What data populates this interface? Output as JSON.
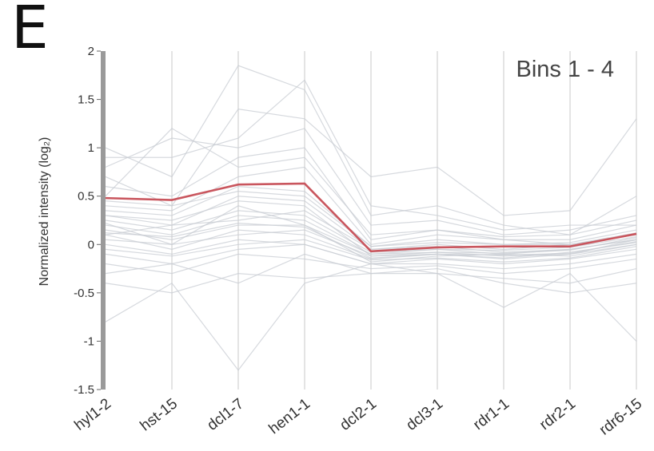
{
  "panel_label": "E",
  "chart_data": {
    "type": "line",
    "title": "",
    "annotation": "Bins 1 - 4",
    "ylabel": "Normalized intensity (log₂)",
    "xlabel": "",
    "categories": [
      "hyl1-2",
      "hst-15",
      "dcl1-7",
      "hen1-1",
      "dcl2-1",
      "dcl3-1",
      "rdr1-1",
      "rdr2-1",
      "rdr6-15"
    ],
    "yticks": [
      "2",
      "1.5",
      "1",
      "0.5",
      "0",
      "-0.5",
      "-1",
      "-1.5"
    ],
    "ylim": [
      -1.5,
      2
    ],
    "grid": "vertical",
    "highlight_color": "#c9565e",
    "background_color": "#c8ccd3",
    "series": [
      {
        "role": "average",
        "values": [
          0.48,
          0.46,
          0.62,
          0.63,
          -0.07,
          -0.03,
          -0.02,
          -0.02,
          0.11
        ]
      },
      {
        "role": "background",
        "values": [
          0.2,
          0.1,
          0.3,
          0.25,
          -0.1,
          -0.05,
          -0.1,
          -0.05,
          0.05
        ]
      },
      {
        "role": "background",
        "values": [
          0.1,
          -0.05,
          0.15,
          0.1,
          -0.15,
          -0.1,
          -0.15,
          -0.1,
          0.0
        ]
      },
      {
        "role": "background",
        "values": [
          0.3,
          0.2,
          0.5,
          0.45,
          -0.05,
          0.0,
          -0.05,
          0.0,
          0.1
        ]
      },
      {
        "role": "background",
        "values": [
          0.0,
          -0.1,
          0.05,
          0.0,
          -0.2,
          -0.15,
          -0.2,
          -0.15,
          -0.05
        ]
      },
      {
        "role": "background",
        "values": [
          0.15,
          0.05,
          0.2,
          0.2,
          -0.1,
          -0.08,
          -0.12,
          -0.1,
          0.05
        ]
      },
      {
        "role": "background",
        "values": [
          0.25,
          0.15,
          0.35,
          0.3,
          -0.08,
          -0.05,
          -0.06,
          -0.03,
          0.08
        ]
      },
      {
        "role": "background",
        "values": [
          -0.1,
          -0.2,
          -0.05,
          0.0,
          -0.2,
          -0.2,
          -0.25,
          -0.2,
          -0.1
        ]
      },
      {
        "role": "background",
        "values": [
          0.35,
          0.3,
          0.6,
          0.55,
          -0.02,
          0.05,
          0.0,
          0.02,
          0.15
        ]
      },
      {
        "role": "background",
        "values": [
          0.05,
          0.0,
          0.1,
          0.15,
          -0.12,
          -0.1,
          -0.14,
          -0.08,
          0.02
        ]
      },
      {
        "role": "background",
        "values": [
          0.4,
          0.35,
          0.7,
          0.8,
          0.0,
          0.1,
          0.05,
          0.05,
          0.2
        ]
      },
      {
        "role": "background",
        "values": [
          -0.2,
          -0.3,
          -0.1,
          -0.15,
          -0.25,
          -0.22,
          -0.3,
          -0.25,
          -0.15
        ]
      },
      {
        "role": "background",
        "values": [
          0.6,
          0.5,
          0.9,
          1.0,
          0.05,
          0.15,
          0.08,
          0.1,
          0.25
        ]
      },
      {
        "role": "background",
        "values": [
          0.1,
          0.2,
          0.25,
          0.35,
          -0.05,
          -0.02,
          -0.08,
          -0.05,
          0.05
        ]
      },
      {
        "role": "background",
        "values": [
          0.22,
          0.0,
          0.4,
          0.2,
          -0.18,
          -0.12,
          -0.1,
          -0.12,
          0.0
        ]
      },
      {
        "role": "background",
        "values": [
          0.8,
          1.1,
          1.0,
          1.2,
          0.2,
          0.25,
          0.1,
          0.15,
          0.3
        ]
      },
      {
        "role": "background",
        "values": [
          1.0,
          0.7,
          1.85,
          1.6,
          0.3,
          0.4,
          0.2,
          0.1,
          0.5
        ]
      },
      {
        "role": "background",
        "values": [
          -0.4,
          -0.5,
          -0.3,
          -0.35,
          -0.3,
          -0.3,
          -0.35,
          -0.4,
          -0.25
        ]
      },
      {
        "role": "background",
        "values": [
          0.5,
          1.2,
          0.8,
          0.9,
          0.1,
          0.15,
          0.05,
          0.0,
          0.1
        ]
      },
      {
        "role": "background",
        "values": [
          -0.8,
          -0.4,
          -1.3,
          -0.4,
          -0.2,
          -0.3,
          -0.65,
          -0.3,
          -1.0
        ]
      },
      {
        "role": "background",
        "values": [
          0.7,
          0.4,
          1.4,
          1.3,
          0.7,
          0.8,
          0.3,
          0.35,
          1.3
        ]
      },
      {
        "role": "background",
        "values": [
          -0.3,
          -0.2,
          -0.4,
          -0.1,
          -0.3,
          -0.25,
          -0.4,
          -0.5,
          -0.4
        ]
      },
      {
        "role": "background",
        "values": [
          0.9,
          0.9,
          1.1,
          1.7,
          0.4,
          0.3,
          0.15,
          0.2,
          0.2
        ]
      },
      {
        "role": "background",
        "values": [
          0.3,
          0.25,
          0.45,
          0.4,
          -0.12,
          -0.08,
          -0.09,
          -0.06,
          0.07
        ]
      },
      {
        "role": "background",
        "values": [
          0.12,
          0.08,
          0.22,
          0.18,
          -0.14,
          -0.1,
          -0.11,
          -0.09,
          0.03
        ]
      },
      {
        "role": "background",
        "values": [
          -0.05,
          -0.12,
          0.0,
          0.05,
          -0.16,
          -0.14,
          -0.18,
          -0.14,
          -0.02
        ]
      },
      {
        "role": "background",
        "values": [
          0.45,
          0.4,
          0.55,
          0.5,
          -0.02,
          0.02,
          0.0,
          0.0,
          0.12
        ]
      }
    ]
  }
}
